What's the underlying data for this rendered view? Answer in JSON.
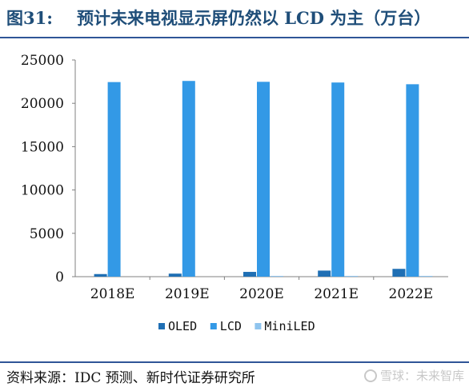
{
  "figure": {
    "number": "图31:",
    "title": "预计未来电视显示屏仍然以 LCD 为主（万台）"
  },
  "source": "资料来源：IDC 预测、新时代证券研究所",
  "watermark": "雪球：未来智库",
  "chart_data": {
    "type": "bar",
    "categories": [
      "2018E",
      "2019E",
      "2020E",
      "2021E",
      "2022E"
    ],
    "series": [
      {
        "name": "OLED",
        "values": [
          300,
          350,
          550,
          700,
          900
        ],
        "color": "#1f6fb4"
      },
      {
        "name": "LCD",
        "values": [
          22450,
          22580,
          22480,
          22400,
          22200
        ],
        "color": "#3399e6"
      },
      {
        "name": "MiniLED",
        "values": [
          0,
          0,
          10,
          40,
          80
        ],
        "color": "#8fc4ee"
      }
    ],
    "ylim": [
      0,
      25000
    ],
    "yticks": [
      "0",
      "5000",
      "10000",
      "15000",
      "20000",
      "25000"
    ],
    "grid": false,
    "legend": "bottom"
  }
}
